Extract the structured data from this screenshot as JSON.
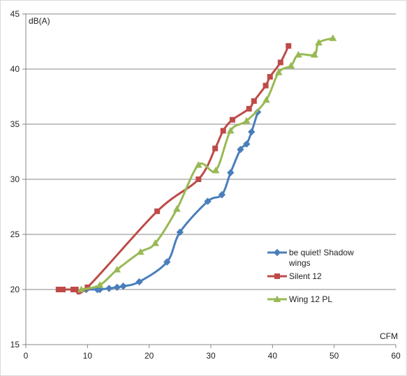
{
  "chart_data": {
    "type": "line",
    "title": "",
    "xlabel": "CFM",
    "ylabel": "dB(A)",
    "xlim": [
      0,
      60
    ],
    "ylim": [
      15,
      45
    ],
    "x_ticks": [
      0,
      10,
      20,
      30,
      40,
      50,
      60
    ],
    "y_ticks": [
      15,
      20,
      25,
      30,
      35,
      40,
      45
    ],
    "grid": "horizontal",
    "legend_position": "right",
    "series": [
      {
        "name": "be quiet! Shadow wings",
        "legend_lines": [
          "be quiet! Shadow",
          "wings"
        ],
        "color": "#4a7ebb",
        "marker": "diamond",
        "x": [
          9.8,
          11.6,
          12.0,
          13.5,
          14.8,
          15.8,
          18.4,
          22.9,
          25.0,
          29.5,
          31.8,
          33.2,
          34.8,
          35.8,
          36.6,
          37.6
        ],
        "y": [
          20.0,
          20.0,
          20.0,
          20.1,
          20.2,
          20.3,
          20.7,
          22.5,
          25.2,
          28.0,
          28.6,
          30.6,
          32.7,
          33.2,
          34.3,
          36.1
        ]
      },
      {
        "name": "Silent 12",
        "legend_lines": [
          "Silent 12"
        ],
        "color": "#be4b48",
        "marker": "square",
        "x": [
          5.3,
          6.0,
          7.7,
          8.1,
          10.0,
          21.3,
          28.0,
          30.7,
          32.0,
          33.5,
          36.2,
          37.0,
          38.9,
          39.6,
          41.3,
          42.6
        ],
        "y": [
          20.0,
          20.0,
          20.0,
          20.0,
          20.2,
          27.1,
          30.0,
          32.8,
          34.4,
          35.4,
          36.4,
          37.1,
          38.5,
          39.3,
          40.6,
          42.1
        ]
      },
      {
        "name": "Wing 12 PL",
        "legend_lines": [
          "Wing 12 PL"
        ],
        "color": "#98b954",
        "marker": "triangle",
        "x": [
          9.0,
          12.0,
          14.8,
          18.6,
          21.0,
          24.5,
          28.0,
          30.8,
          33.2,
          35.8,
          39.0,
          41.0,
          43.0,
          44.2,
          46.8,
          47.5,
          49.8
        ],
        "y": [
          20.0,
          20.4,
          21.8,
          23.4,
          24.2,
          27.3,
          31.3,
          30.8,
          34.4,
          35.3,
          37.2,
          39.7,
          40.3,
          41.3,
          41.3,
          42.4,
          42.8
        ]
      }
    ]
  }
}
